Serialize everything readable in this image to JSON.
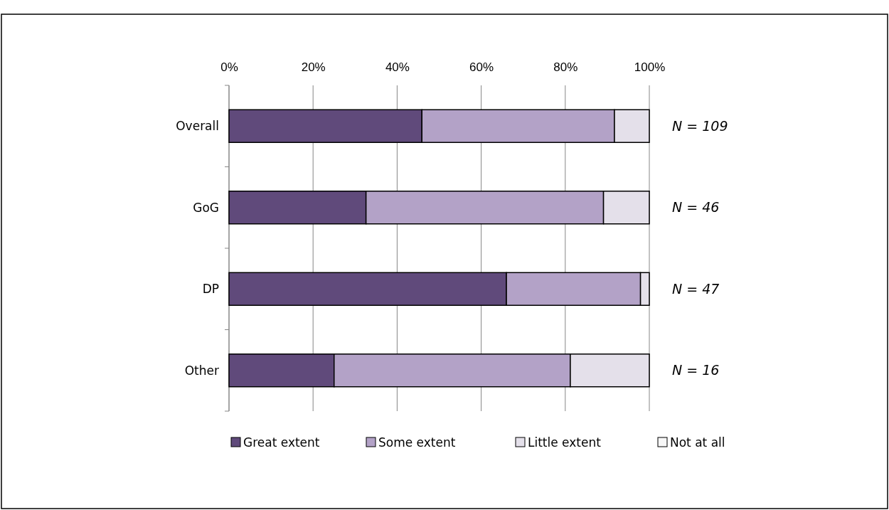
{
  "chart_data": {
    "type": "bar",
    "orientation": "horizontal",
    "stacked": true,
    "categories": [
      "Overall",
      "GoG",
      "DP",
      "Other"
    ],
    "series": [
      {
        "name": "Great extent",
        "color": "#604a7b",
        "values": [
          45.9,
          32.6,
          66.0,
          25.0
        ]
      },
      {
        "name": "Some extent",
        "color": "#b3a2c7",
        "values": [
          45.8,
          56.5,
          31.9,
          56.2
        ]
      },
      {
        "name": "Little extent",
        "color": "#e4e0ea",
        "values": [
          8.3,
          10.9,
          2.1,
          18.8
        ]
      },
      {
        "name": "Not at all",
        "color": "#f7f7f7",
        "values": [
          0,
          0,
          0,
          0
        ]
      }
    ],
    "xlim": [
      0,
      100
    ],
    "xticks": [
      {
        "value": 0,
        "label": "0%"
      },
      {
        "value": 20,
        "label": "20%"
      },
      {
        "value": 40,
        "label": "40%"
      },
      {
        "value": 60,
        "label": "60%"
      },
      {
        "value": 80,
        "label": "80%"
      },
      {
        "value": 100,
        "label": "100%"
      }
    ],
    "grid": "x",
    "legend": "bottom",
    "annotations": [
      "N = 109",
      "N = 46",
      "N = 47",
      "N = 16"
    ]
  }
}
